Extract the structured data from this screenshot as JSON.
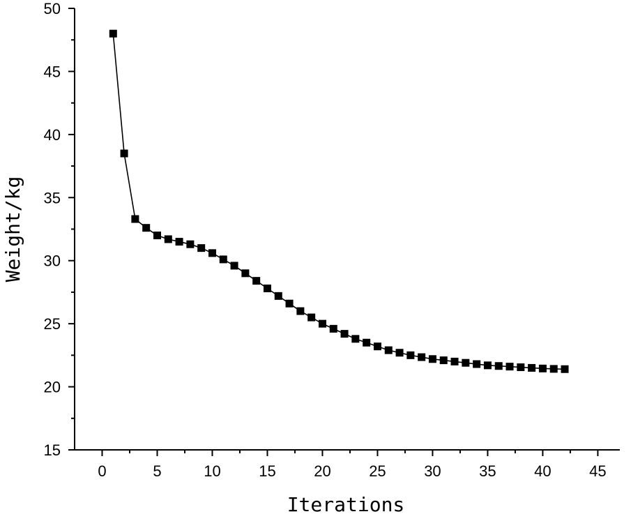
{
  "chart_data": {
    "type": "line",
    "title": "",
    "xlabel": "Iterations",
    "ylabel": "Weight/kg",
    "xlim": [
      -2.5,
      47
    ],
    "ylim": [
      15,
      50
    ],
    "xticks": [
      0,
      5,
      10,
      15,
      20,
      25,
      30,
      35,
      40,
      45
    ],
    "yticks": [
      15,
      20,
      25,
      30,
      35,
      40,
      45,
      50
    ],
    "grid": false,
    "marker": "square",
    "series": [
      {
        "x": [
          1,
          2,
          3,
          4,
          5,
          6,
          7,
          8,
          9,
          10,
          11,
          12,
          13,
          14,
          15,
          16,
          17,
          18,
          19,
          20,
          21,
          22,
          23,
          24,
          25,
          26,
          27,
          28,
          29,
          30,
          31,
          32,
          33,
          34,
          35,
          36,
          37,
          38,
          39,
          40,
          41,
          42
        ],
        "values": [
          48.0,
          38.5,
          33.3,
          32.6,
          32.0,
          31.7,
          31.5,
          31.3,
          31.0,
          30.6,
          30.1,
          29.6,
          29.0,
          28.4,
          27.8,
          27.2,
          26.6,
          26.0,
          25.5,
          25.0,
          24.6,
          24.2,
          23.8,
          23.5,
          23.2,
          22.9,
          22.7,
          22.5,
          22.35,
          22.2,
          22.1,
          22.0,
          21.9,
          21.8,
          21.7,
          21.65,
          21.6,
          21.55,
          21.5,
          21.45,
          21.42,
          21.4
        ],
        "color": "#000000"
      }
    ]
  }
}
